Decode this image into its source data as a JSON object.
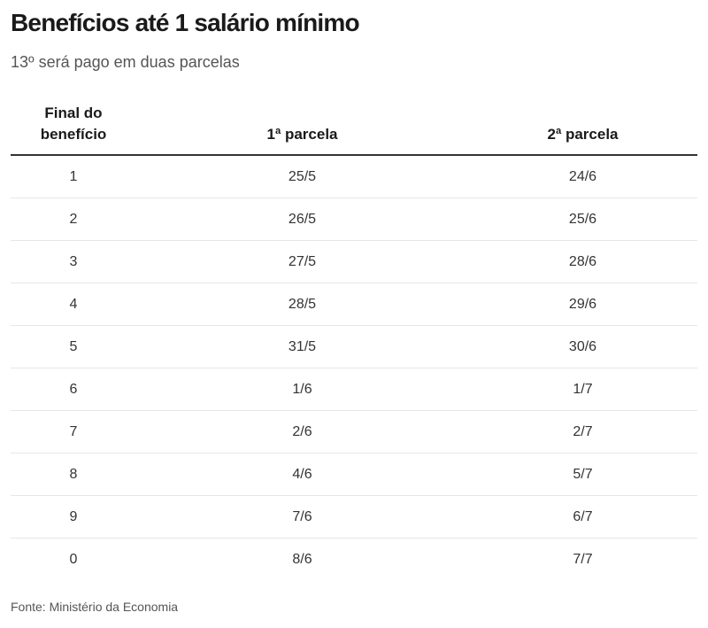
{
  "header": {
    "title": "Benefícios até 1 salário mínimo",
    "subtitle": "13º será pago em duas parcelas"
  },
  "table": {
    "columns": [
      "Final do benefício",
      "1ª parcela",
      "2ª parcela"
    ],
    "rows": [
      [
        "1",
        "25/5",
        "24/6"
      ],
      [
        "2",
        "26/5",
        "25/6"
      ],
      [
        "3",
        "27/5",
        "28/6"
      ],
      [
        "4",
        "28/5",
        "29/6"
      ],
      [
        "5",
        "31/5",
        "30/6"
      ],
      [
        "6",
        "1/6",
        "1/7"
      ],
      [
        "7",
        "2/6",
        "2/7"
      ],
      [
        "8",
        "4/6",
        "5/7"
      ],
      [
        "9",
        "7/6",
        "6/7"
      ],
      [
        "0",
        "8/6",
        "7/7"
      ]
    ]
  },
  "footer": {
    "source": "Fonte: Ministério da Economia"
  },
  "colors": {
    "text": "#1a1a1a",
    "muted": "#555555",
    "rule_strong": "#333333",
    "rule_light": "#e6e6e6"
  }
}
